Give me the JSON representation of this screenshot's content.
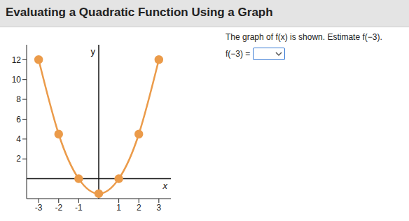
{
  "header": {
    "title": "Evaluating a Quadratic Function Using a Graph"
  },
  "question": {
    "prompt": "The graph of f(x) is shown. Estimate f(−3).",
    "answer_label": "f(−3) ="
  },
  "chart_data": {
    "type": "line",
    "x": [
      -3,
      -2,
      -1,
      0,
      1,
      2,
      3
    ],
    "values": [
      12,
      4.5,
      0,
      -1.5,
      0,
      4.5,
      12
    ],
    "color": "#eb9b4a",
    "marker": "circle",
    "x_label": "x",
    "y_label": "y",
    "xlim": [
      -3.6,
      3.6
    ],
    "ylim": [
      -2,
      13.5
    ],
    "xticks": [
      -3,
      -2,
      -1,
      1,
      2,
      3
    ],
    "yticks": [
      2,
      4,
      6,
      8,
      10,
      12
    ],
    "grid": false
  }
}
